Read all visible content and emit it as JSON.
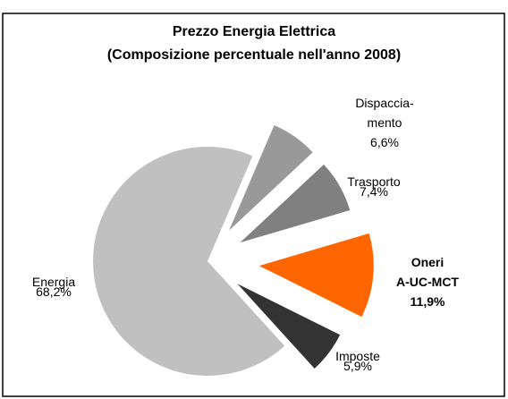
{
  "chart_data": {
    "type": "pie",
    "title": "Prezzo Energia Elettrica",
    "subtitle": "(Composizione percentuale nell'anno 2008)",
    "categories": [
      "Dispaccia-\nmento",
      "Trasporto",
      "Oneri\nA-UC-MCT",
      "Imposte",
      "Energia"
    ],
    "values": [
      6.6,
      7.4,
      11.9,
      5.9,
      68.2
    ],
    "value_labels": [
      "6,6%",
      "7,4%",
      "11,9%",
      "5,9%",
      "68,2%"
    ],
    "colors": [
      "#999999",
      "#808080",
      "#ff6600",
      "#333333",
      "#c0c0c0"
    ],
    "highlight": 2
  }
}
